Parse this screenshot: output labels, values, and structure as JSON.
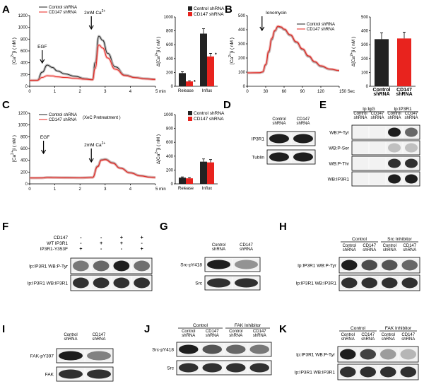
{
  "figure": {
    "panels": {
      "A": {
        "label": "A"
      },
      "B": {
        "label": "B"
      },
      "C": {
        "label": "C"
      },
      "D": {
        "label": "D"
      },
      "E": {
        "label": "E"
      },
      "F": {
        "label": "F"
      },
      "G": {
        "label": "G"
      },
      "H": {
        "label": "H"
      },
      "I": {
        "label": "I"
      },
      "J": {
        "label": "J"
      },
      "K": {
        "label": "K"
      }
    },
    "colors": {
      "control": "#222222",
      "cd147": "#e8231e",
      "band": "#1e1e1e"
    }
  },
  "chart_data": [
    {
      "id": "A-trace",
      "type": "line",
      "ylabel": "[Ca2+]i ( nM )",
      "xunit": "5 min",
      "ylim": [
        0,
        1200
      ],
      "yticks": [
        "0",
        "200",
        "400",
        "600",
        "800",
        "1000",
        "1200"
      ],
      "xticks": [
        "0",
        "1",
        "2",
        "3",
        "4",
        "5 min"
      ],
      "legend": [
        "Control shRNA",
        "CD147 shRNA"
      ],
      "annotations": [
        "EGF",
        "2mM Ca2+"
      ],
      "series": [
        {
          "name": "Control shRNA",
          "x": [
            0,
            0.3,
            0.5,
            0.7,
            0.9,
            1.1,
            1.4,
            1.8,
            2.2,
            2.5,
            2.6,
            2.75,
            2.9,
            3.1,
            3.4,
            3.8,
            4.2,
            4.6,
            5
          ],
          "y": [
            100,
            102,
            240,
            360,
            320,
            260,
            210,
            170,
            130,
            115,
            400,
            850,
            780,
            560,
            330,
            190,
            150,
            130,
            120
          ]
        },
        {
          "name": "CD147 shRNA",
          "x": [
            0,
            0.3,
            0.5,
            0.7,
            0.9,
            1.1,
            1.4,
            1.8,
            2.2,
            2.5,
            2.6,
            2.75,
            2.9,
            3.1,
            3.4,
            3.8,
            4.2,
            4.6,
            5
          ],
          "y": [
            100,
            101,
            150,
            180,
            175,
            160,
            150,
            135,
            120,
            110,
            300,
            700,
            650,
            480,
            290,
            180,
            145,
            125,
            115
          ]
        }
      ]
    },
    {
      "id": "A-bar",
      "type": "bar",
      "ylabel": "Δ[Ca2+]i ( nM )",
      "ylim": [
        0,
        1000
      ],
      "yticks": [
        "0",
        "200",
        "400",
        "600",
        "800",
        "1000"
      ],
      "categories": [
        "Release",
        "Influx"
      ],
      "legend": [
        "Control shRNA",
        "CD147 shRNA"
      ],
      "series": [
        {
          "name": "Control shRNA",
          "values": [
            190,
            760
          ]
        },
        {
          "name": "CD147 shRNA",
          "values": [
            70,
            430
          ]
        }
      ],
      "errors": [
        [
          20,
          70
        ],
        [
          10,
          45
        ]
      ],
      "significance": [
        "*",
        "*"
      ]
    },
    {
      "id": "B-trace",
      "type": "line",
      "ylabel": "[Ca2+]i ( nM )",
      "ylim": [
        0,
        500
      ],
      "yticks": [
        "0",
        "100",
        "200",
        "300",
        "400",
        "500"
      ],
      "xticks": [
        "0",
        "30",
        "60",
        "90",
        "120",
        "150 Sec"
      ],
      "legend": [
        "Control shRNA",
        "CD147 shRNA"
      ],
      "annotations": [
        "Ionomycin"
      ],
      "series": [
        {
          "name": "Control shRNA",
          "x": [
            0,
            20,
            25,
            30,
            35,
            40,
            45,
            50,
            55,
            60,
            70,
            80,
            90,
            100,
            110,
            120,
            135,
            150
          ],
          "y": [
            95,
            95,
            100,
            150,
            240,
            330,
            390,
            420,
            415,
            400,
            360,
            310,
            260,
            210,
            170,
            140,
            120,
            110
          ]
        },
        {
          "name": "CD147 shRNA",
          "x": [
            0,
            20,
            25,
            30,
            35,
            40,
            45,
            50,
            55,
            60,
            70,
            80,
            90,
            100,
            110,
            120,
            135,
            150
          ],
          "y": [
            95,
            96,
            102,
            155,
            250,
            340,
            395,
            425,
            420,
            405,
            365,
            315,
            265,
            215,
            175,
            145,
            122,
            112
          ]
        }
      ]
    },
    {
      "id": "B-bar",
      "type": "bar",
      "ylabel": "Δ[Ca2+]i ( nM )",
      "ylim": [
        0,
        500
      ],
      "yticks": [
        "0",
        "100",
        "200",
        "300",
        "400",
        "500"
      ],
      "categories": [
        "Control shRNA",
        "CD147 shRNA"
      ],
      "values": [
        340,
        345
      ],
      "errors": [
        45,
        45
      ]
    },
    {
      "id": "C-trace",
      "type": "line",
      "ylabel": "[Ca2+]i ( nM )",
      "ylim": [
        0,
        1200
      ],
      "yticks": [
        "0",
        "200",
        "400",
        "600",
        "800",
        "1000",
        "1200"
      ],
      "xticks": [
        "0",
        "1",
        "2",
        "3",
        "4",
        "5 min"
      ],
      "legend": [
        "Control shRNA",
        "CD147 shRNA",
        "(XeC Pretreatment )"
      ],
      "annotations": [
        "EGF",
        "2mM Ca2+"
      ],
      "series": [
        {
          "name": "Control shRNA",
          "x": [
            0,
            0.5,
            0.7,
            1,
            1.5,
            2,
            2.5,
            2.7,
            2.85,
            3,
            3.3,
            3.6,
            4,
            4.4,
            4.8,
            5
          ],
          "y": [
            100,
            102,
            110,
            108,
            106,
            104,
            110,
            300,
            410,
            420,
            360,
            270,
            190,
            140,
            115,
            110
          ]
        },
        {
          "name": "CD147 shRNA",
          "x": [
            0,
            0.5,
            0.7,
            1,
            1.5,
            2,
            2.5,
            2.7,
            2.85,
            3,
            3.3,
            3.6,
            4,
            4.4,
            4.8,
            5
          ],
          "y": [
            100,
            101,
            108,
            106,
            104,
            102,
            108,
            290,
            400,
            410,
            350,
            265,
            185,
            135,
            112,
            108
          ]
        }
      ]
    },
    {
      "id": "C-bar",
      "type": "bar",
      "ylabel": "Δ[Ca2+]i ( nM )",
      "ylim": [
        0,
        1000
      ],
      "yticks": [
        "0",
        "200",
        "400",
        "600",
        "800",
        "1000"
      ],
      "categories": [
        "Release",
        "Influx"
      ],
      "legend": [
        "Control shRNA",
        "CD147 shRNA"
      ],
      "series": [
        {
          "name": "Control shRNA",
          "values": [
            90,
            320
          ]
        },
        {
          "name": "CD147 shRNA",
          "values": [
            80,
            310
          ]
        }
      ],
      "errors": [
        [
          10,
          40
        ],
        [
          10,
          40
        ]
      ]
    }
  ],
  "blots": {
    "D": {
      "lanes": [
        "Control shRNA",
        "CD147 shRNA"
      ],
      "rows": [
        {
          "label": "IP3R1",
          "bands": [
            1.0,
            1.0
          ]
        },
        {
          "label": "Tublin",
          "bands": [
            1.0,
            1.0
          ]
        }
      ]
    },
    "E": {
      "groups": [
        "Ip:IgG",
        "Ip:IP3R1"
      ],
      "lanes": [
        "Control shRNA",
        "CD147 shRNA",
        "Control shRNA",
        "CD147 shRNA"
      ],
      "rows": [
        {
          "label": "WB:P-Tyr",
          "bands": [
            0,
            0,
            1.0,
            0.6
          ]
        },
        {
          "label": "WB:P-Ser",
          "bands": [
            0,
            0,
            0.1,
            0.1
          ]
        },
        {
          "label": "WB:P-Thr",
          "bands": [
            0,
            0,
            0.9,
            0.9
          ]
        },
        {
          "label": "WB:IP3R1",
          "bands": [
            0,
            0,
            1.0,
            1.0
          ]
        }
      ]
    },
    "F": {
      "conditions": [
        {
          "label": "CD147",
          "marks": [
            "-",
            "-",
            "+",
            "+"
          ]
        },
        {
          "label": "WT IP3R1",
          "marks": [
            "-",
            "+",
            "+",
            "-"
          ]
        },
        {
          "label": "IP3R1-Y353F",
          "marks": [
            "+",
            "-",
            "-",
            "+"
          ]
        }
      ],
      "rows": [
        {
          "label": "Ip:IP3R1  WB:P-Tyr",
          "bands": [
            0.5,
            0.6,
            1.0,
            0.55
          ]
        },
        {
          "label": "Ip:IP3R1  WB:IP3R1",
          "bands": [
            0.9,
            0.9,
            0.9,
            0.9
          ]
        }
      ]
    },
    "G": {
      "lanes": [
        "Control shRNA",
        "CD147 shRNA"
      ],
      "rows": [
        {
          "label": "Src-pY418",
          "bands": [
            1.0,
            0.35
          ]
        },
        {
          "label": "Src",
          "bands": [
            0.9,
            0.9
          ]
        }
      ]
    },
    "H": {
      "groups": [
        "Control",
        "Src Inhibitor"
      ],
      "lanes": [
        "Control shRNA",
        "CD147 shRNA",
        "Control shRNA",
        "CD147 shRNA"
      ],
      "rows": [
        {
          "label": "Ip:IP3R1  WB:P-Tyr",
          "bands": [
            1.0,
            0.75,
            0.7,
            0.6
          ]
        },
        {
          "label": "Ip:IP3R1 WB:IP3R1",
          "bands": [
            0.9,
            0.9,
            0.9,
            0.9
          ]
        }
      ]
    },
    "I": {
      "lanes": [
        "Control shRNA",
        "CD147 shRNA"
      ],
      "rows": [
        {
          "label": "FAK-pY397",
          "bands": [
            1.0,
            0.45
          ]
        },
        {
          "label": "FAK",
          "bands": [
            0.9,
            0.9
          ]
        }
      ]
    },
    "J": {
      "groups": [
        "Control",
        "FAK Inhibitor"
      ],
      "lanes": [
        "Control shRNA",
        "CD147 shRNA",
        "Control shRNA",
        "CD147 shRNA"
      ],
      "rows": [
        {
          "label": "Src-pY418",
          "bands": [
            1.0,
            0.7,
            0.6,
            0.5
          ]
        },
        {
          "label": "Src",
          "bands": [
            0.9,
            0.9,
            0.9,
            0.9
          ]
        }
      ]
    },
    "K": {
      "groups": [
        "Control",
        "FAK Inhibitor"
      ],
      "lanes": [
        "Control shRNA",
        "CD147 shRNA",
        "Control shRNA",
        "CD147 shRNA"
      ],
      "rows": [
        {
          "label": "Ip:IP3R1  WB:P-Tyr",
          "bands": [
            1.0,
            0.8,
            0.3,
            0.15
          ]
        },
        {
          "label": "Ip:IP3R1  WB:IP3R1",
          "bands": [
            0.9,
            0.9,
            0.9,
            0.9
          ]
        }
      ]
    }
  }
}
